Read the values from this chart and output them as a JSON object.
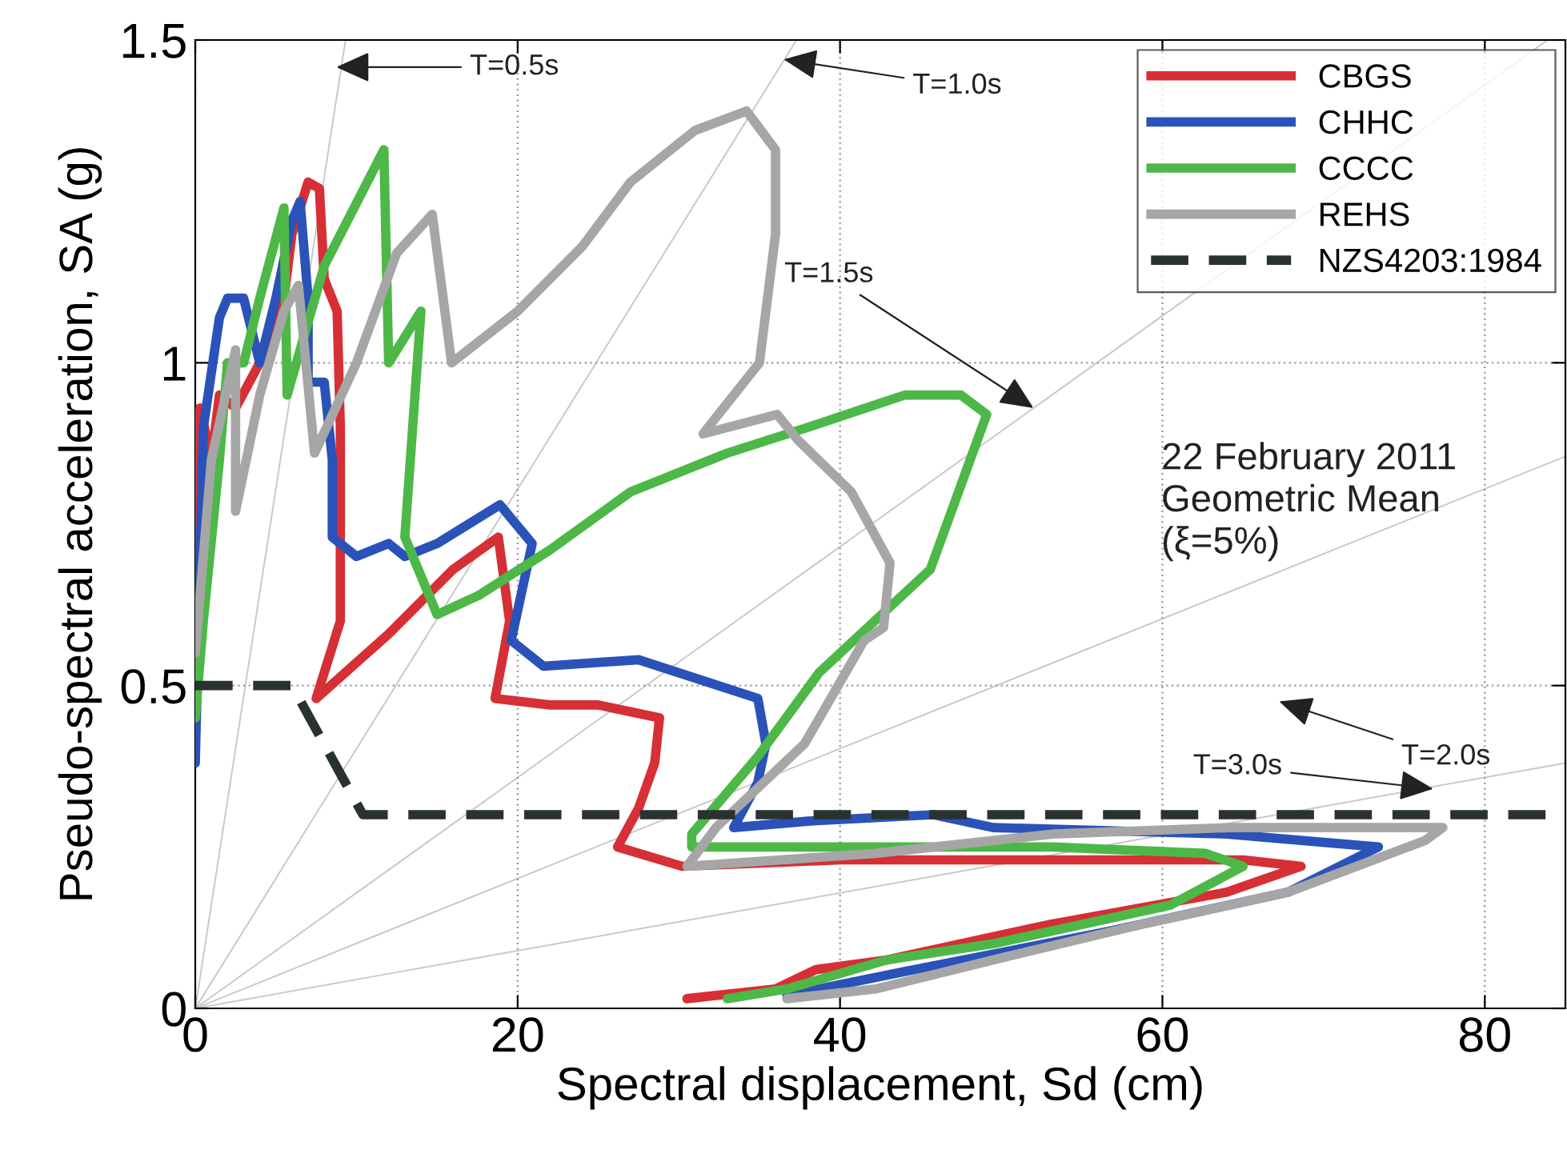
{
  "chart_data": {
    "type": "line",
    "xlabel": "Spectral displacement, Sd (cm)",
    "ylabel": "Pseudo-spectral acceleration, SA (g)",
    "xlim": [
      0,
      85
    ],
    "ylim": [
      0,
      1.5
    ],
    "xticks": [
      0,
      20,
      40,
      60,
      80
    ],
    "yticks": [
      0,
      0.5,
      1,
      1.5
    ],
    "grid": true,
    "legend": "top right",
    "marker": "none",
    "series": [
      {
        "color": "#c8c8c8",
        "x": [
          0,
          9.32
        ],
        "values": [
          0,
          1.5
        ]
      },
      {
        "color": "#c8c8c8",
        "x": [
          0,
          37.3
        ],
        "values": [
          0,
          1.5
        ]
      },
      {
        "color": "#c8c8c8",
        "x": [
          0,
          83.9
        ],
        "values": [
          0,
          1.5
        ]
      },
      {
        "color": "#c8c8c8",
        "x": [
          0,
          85
        ],
        "values": [
          0,
          0.855
        ]
      },
      {
        "color": "#c8c8c8",
        "x": [
          0,
          85
        ],
        "values": [
          0,
          0.38
        ]
      },
      {
        "name": "CBGS",
        "color": "#d62f35",
        "x": [
          0,
          0.3,
          1,
          1.5,
          2.5,
          4,
          5,
          5.5,
          6,
          7,
          7.7,
          8,
          8.8,
          9,
          9,
          7.5,
          12,
          16,
          18.8,
          19.5,
          18.6,
          22,
          25,
          28.8,
          28.5,
          27.5,
          26.2,
          30.2,
          40,
          55,
          65,
          68.6,
          64,
          53,
          42.9,
          38.5,
          36,
          30.5
        ],
        "values": [
          0.7,
          0.93,
          0.85,
          0.95,
          0.93,
          1.0,
          1.05,
          1.1,
          1.2,
          1.28,
          1.27,
          1.13,
          1.08,
          0.9,
          0.6,
          0.48,
          0.58,
          0.68,
          0.73,
          0.6,
          0.48,
          0.47,
          0.47,
          0.45,
          0.38,
          0.31,
          0.25,
          0.22,
          0.23,
          0.23,
          0.23,
          0.22,
          0.18,
          0.13,
          0.075,
          0.06,
          0.03,
          0.015
        ]
      },
      {
        "name": "CHHC",
        "color": "#2a52b8",
        "x": [
          0,
          0.5,
          1.5,
          2,
          3,
          4,
          5,
          6,
          6.5,
          7,
          7,
          8,
          8.5,
          8.5,
          10,
          12,
          13,
          15,
          18.9,
          20.9,
          19.6,
          21.6,
          27.5,
          34.9,
          35.4,
          34.9,
          33.4,
          38,
          45.8,
          49.5,
          64,
          73.4,
          67.8,
          56.8,
          44,
          36.7
        ],
        "values": [
          0.38,
          0.9,
          1.07,
          1.1,
          1.1,
          1.0,
          1.1,
          1.22,
          1.25,
          1.1,
          0.97,
          0.97,
          0.85,
          0.73,
          0.7,
          0.72,
          0.7,
          0.72,
          0.78,
          0.72,
          0.57,
          0.53,
          0.54,
          0.48,
          0.41,
          0.35,
          0.28,
          0.29,
          0.3,
          0.28,
          0.27,
          0.25,
          0.18,
          0.12,
          0.057,
          0.02
        ]
      },
      {
        "name": "CCCC",
        "color": "#4db848",
        "x": [
          0,
          0.5,
          1.5,
          2,
          3,
          4,
          5.5,
          5.7,
          8,
          11.7,
          12,
          14,
          13,
          15,
          17.6,
          22,
          27,
          33,
          38,
          44,
          47.5,
          49.1,
          45.6,
          38.7,
          34.9,
          30.8,
          30.8,
          42.2,
          53.2,
          62.7,
          65,
          60.5,
          49.5,
          42.9,
          36.7,
          33
        ],
        "values": [
          0.45,
          0.6,
          0.85,
          1.0,
          1.0,
          1.1,
          1.24,
          0.95,
          1.15,
          1.33,
          1.0,
          1.08,
          0.73,
          0.61,
          0.64,
          0.71,
          0.8,
          0.86,
          0.9,
          0.95,
          0.95,
          0.92,
          0.68,
          0.52,
          0.39,
          0.27,
          0.25,
          0.25,
          0.25,
          0.24,
          0.22,
          0.16,
          0.1,
          0.075,
          0.03,
          0.015
        ]
      },
      {
        "name": "REHS",
        "color": "#a6a6a6",
        "x": [
          0,
          0.5,
          1,
          2.5,
          2.5,
          4,
          5.5,
          6.4,
          7.4,
          10,
          12.5,
          14.7,
          15.9,
          20,
          24,
          27,
          31,
          34.2,
          36,
          36,
          35,
          31.5,
          36.1,
          37.4,
          40.7,
          43.1,
          42.7,
          41.5,
          37.8,
          32.3,
          30.5,
          42.2,
          53.2,
          64.2,
          77.4,
          76.3,
          67.8,
          58.7,
          49.5,
          42.2,
          36.7
        ],
        "values": [
          0.55,
          0.7,
          0.85,
          1.02,
          0.77,
          0.95,
          1.08,
          1.12,
          0.86,
          1.0,
          1.17,
          1.23,
          1.0,
          1.08,
          1.18,
          1.28,
          1.36,
          1.39,
          1.33,
          1.2,
          1.0,
          0.89,
          0.92,
          0.88,
          0.8,
          0.69,
          0.59,
          0.57,
          0.41,
          0.28,
          0.22,
          0.24,
          0.27,
          0.28,
          0.28,
          0.26,
          0.18,
          0.13,
          0.075,
          0.03,
          0.015
        ]
      },
      {
        "name": "NZS4203:1984",
        "color": "#2a3230",
        "line_style": "dashed",
        "x": [
          0,
          6,
          10.4,
          85
        ],
        "values": [
          0.5,
          0.5,
          0.3,
          0.3
        ]
      }
    ],
    "annotations": [
      "T=0.5s",
      {
        "text": "T=1.0s",
        "x": 36.5,
        "y": 1.47
      },
      {
        "text": "T=1.5s",
        "x": 52,
        "y": 0.93
      },
      "T=2.0s",
      {
        "text": "T=3.0s",
        "x": 76.8,
        "y": 0.34
      },
      "22 February 2011\nGeometric Mean\n(ξ=5%)"
    ]
  }
}
